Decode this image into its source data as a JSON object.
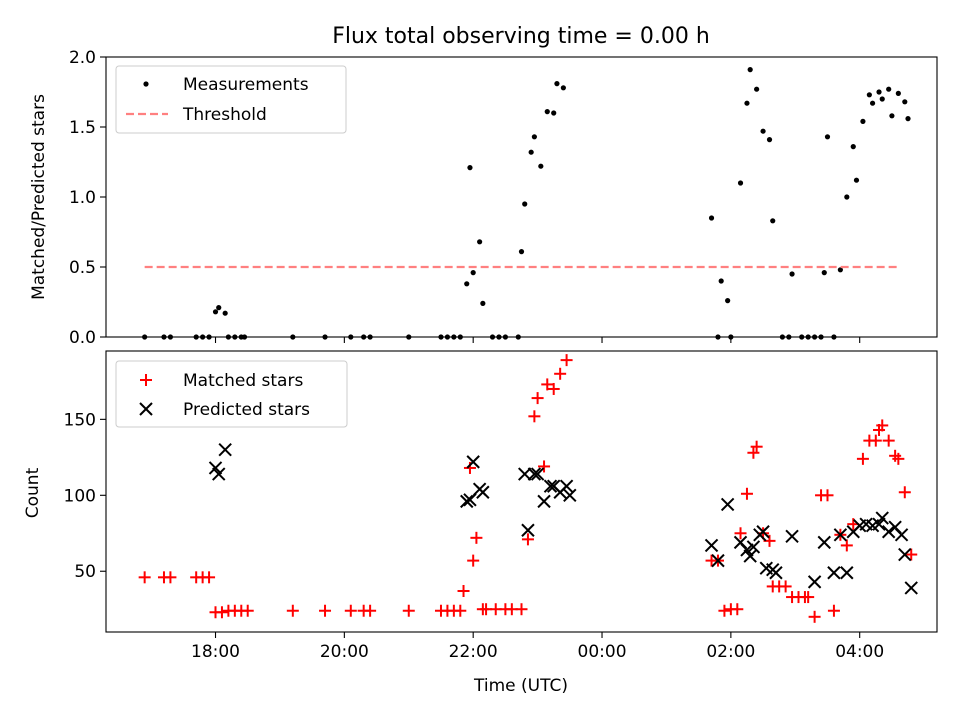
{
  "chart_data": [
    {
      "type": "scatter",
      "title": "Flux total observing time = 0.00 h",
      "xlabel": "",
      "ylabel": "Matched/Predicted stars",
      "xlim": [
        16.3,
        29.2
      ],
      "ylim": [
        0.0,
        2.0
      ],
      "x_tick_labels": [
        "18:00",
        "20:00",
        "22:00",
        "00:00",
        "02:00",
        "04:00"
      ],
      "y_ticks": [
        0.0,
        0.5,
        1.0,
        1.5,
        2.0
      ],
      "y_tick_labels": [
        "0.0",
        "0.5",
        "1.0",
        "1.5",
        "2.0"
      ],
      "legend_position": "top-left",
      "series": [
        {
          "name": "Measurements",
          "marker": "dot",
          "color": "#000000",
          "points": [
            [
              16.9,
              0
            ],
            [
              17.2,
              0
            ],
            [
              17.3,
              0
            ],
            [
              17.7,
              0
            ],
            [
              17.8,
              0
            ],
            [
              17.9,
              0
            ],
            [
              18.0,
              0.18
            ],
            [
              18.05,
              0.21
            ],
            [
              18.15,
              0.17
            ],
            [
              18.2,
              0
            ],
            [
              18.3,
              0
            ],
            [
              18.4,
              0
            ],
            [
              18.45,
              0
            ],
            [
              19.2,
              0
            ],
            [
              19.7,
              0
            ],
            [
              20.1,
              0
            ],
            [
              20.3,
              0
            ],
            [
              20.4,
              0
            ],
            [
              21.0,
              0
            ],
            [
              21.5,
              0
            ],
            [
              21.6,
              0
            ],
            [
              21.7,
              0
            ],
            [
              21.8,
              0
            ],
            [
              21.9,
              0.38
            ],
            [
              21.95,
              1.21
            ],
            [
              22.0,
              0.46
            ],
            [
              22.1,
              0.68
            ],
            [
              22.15,
              0.24
            ],
            [
              22.3,
              0
            ],
            [
              22.4,
              0
            ],
            [
              22.5,
              0
            ],
            [
              22.7,
              0
            ],
            [
              22.75,
              0.61
            ],
            [
              22.8,
              0.95
            ],
            [
              22.9,
              1.32
            ],
            [
              22.95,
              1.43
            ],
            [
              23.05,
              1.22
            ],
            [
              23.15,
              1.61
            ],
            [
              23.25,
              1.6
            ],
            [
              23.3,
              1.81
            ],
            [
              23.4,
              1.78
            ],
            [
              25.7,
              0.85
            ],
            [
              25.8,
              0
            ],
            [
              25.85,
              0.4
            ],
            [
              25.95,
              0.26
            ],
            [
              26.0,
              0
            ],
            [
              26.15,
              1.1
            ],
            [
              26.25,
              1.67
            ],
            [
              26.3,
              1.91
            ],
            [
              26.4,
              1.77
            ],
            [
              26.5,
              1.47
            ],
            [
              26.6,
              1.41
            ],
            [
              26.65,
              0.83
            ],
            [
              26.8,
              0
            ],
            [
              26.9,
              0
            ],
            [
              26.95,
              0.45
            ],
            [
              27.1,
              0
            ],
            [
              27.2,
              0
            ],
            [
              27.3,
              0
            ],
            [
              27.4,
              0
            ],
            [
              27.45,
              0.46
            ],
            [
              27.5,
              1.43
            ],
            [
              27.6,
              0
            ],
            [
              27.7,
              0.48
            ],
            [
              27.8,
              1.0
            ],
            [
              27.9,
              1.36
            ],
            [
              27.95,
              1.12
            ],
            [
              28.05,
              1.54
            ],
            [
              28.15,
              1.73
            ],
            [
              28.2,
              1.67
            ],
            [
              28.3,
              1.75
            ],
            [
              28.35,
              1.7
            ],
            [
              28.45,
              1.77
            ],
            [
              28.5,
              1.58
            ],
            [
              28.6,
              1.74
            ],
            [
              28.7,
              1.68
            ],
            [
              28.75,
              1.56
            ]
          ]
        },
        {
          "name": "Threshold",
          "marker": "dashed-line",
          "color": "#ff8080",
          "points": [
            [
              16.9,
              0.5
            ],
            [
              28.6,
              0.5
            ]
          ]
        }
      ]
    },
    {
      "type": "scatter",
      "title": "",
      "xlabel": "Time (UTC)",
      "ylabel": "Count",
      "xlim": [
        16.3,
        29.2
      ],
      "ylim": [
        10,
        195
      ],
      "x_tick_labels": [
        "18:00",
        "20:00",
        "22:00",
        "00:00",
        "02:00",
        "04:00"
      ],
      "y_ticks": [
        50,
        100,
        150
      ],
      "y_tick_labels": [
        "50",
        "100",
        "150"
      ],
      "legend_position": "top-left",
      "series": [
        {
          "name": "Matched stars",
          "marker": "plus",
          "color": "#ff0000",
          "points": [
            [
              16.9,
              46
            ],
            [
              17.2,
              46
            ],
            [
              17.3,
              46
            ],
            [
              17.7,
              46
            ],
            [
              17.8,
              46
            ],
            [
              17.9,
              46
            ],
            [
              18.0,
              23
            ],
            [
              18.1,
              23
            ],
            [
              18.2,
              24
            ],
            [
              18.3,
              24
            ],
            [
              18.4,
              24
            ],
            [
              18.5,
              24
            ],
            [
              19.2,
              24
            ],
            [
              19.7,
              24
            ],
            [
              20.1,
              24
            ],
            [
              20.3,
              24
            ],
            [
              20.4,
              24
            ],
            [
              21.0,
              24
            ],
            [
              21.5,
              24
            ],
            [
              21.6,
              24
            ],
            [
              21.7,
              24
            ],
            [
              21.8,
              24
            ],
            [
              21.85,
              37
            ],
            [
              21.95,
              118
            ],
            [
              22.0,
              57
            ],
            [
              22.05,
              72
            ],
            [
              22.15,
              25
            ],
            [
              22.2,
              25
            ],
            [
              22.35,
              25
            ],
            [
              22.5,
              25
            ],
            [
              22.6,
              25
            ],
            [
              22.75,
              25
            ],
            [
              22.85,
              71
            ],
            [
              22.95,
              152
            ],
            [
              23.0,
              164
            ],
            [
              23.1,
              119
            ],
            [
              23.15,
              173
            ],
            [
              23.25,
              170
            ],
            [
              23.35,
              180
            ],
            [
              23.45,
              189
            ],
            [
              25.7,
              57
            ],
            [
              25.8,
              57
            ],
            [
              25.9,
              24
            ],
            [
              26.0,
              25
            ],
            [
              26.1,
              25
            ],
            [
              26.15,
              75
            ],
            [
              26.25,
              101
            ],
            [
              26.35,
              128
            ],
            [
              26.4,
              132
            ],
            [
              26.5,
              75
            ],
            [
              26.6,
              70
            ],
            [
              26.65,
              40
            ],
            [
              26.75,
              40
            ],
            [
              26.85,
              40
            ],
            [
              26.95,
              33
            ],
            [
              27.05,
              33
            ],
            [
              27.15,
              33
            ],
            [
              27.2,
              33
            ],
            [
              27.3,
              20
            ],
            [
              27.4,
              100
            ],
            [
              27.5,
              100
            ],
            [
              27.6,
              24
            ],
            [
              27.7,
              74
            ],
            [
              27.8,
              67
            ],
            [
              27.9,
              81
            ],
            [
              28.05,
              124
            ],
            [
              28.15,
              136
            ],
            [
              28.25,
              136
            ],
            [
              28.3,
              143
            ],
            [
              28.35,
              146
            ],
            [
              28.45,
              136
            ],
            [
              28.55,
              126
            ],
            [
              28.6,
              124
            ],
            [
              28.7,
              102
            ],
            [
              28.8,
              61
            ]
          ]
        },
        {
          "name": "Predicted stars",
          "marker": "x",
          "color": "#000000",
          "points": [
            [
              18.0,
              118
            ],
            [
              18.05,
              114
            ],
            [
              18.15,
              130
            ],
            [
              21.9,
              96
            ],
            [
              21.95,
              97
            ],
            [
              22.0,
              122
            ],
            [
              22.1,
              104
            ],
            [
              22.15,
              102
            ],
            [
              22.8,
              114
            ],
            [
              22.85,
              77
            ],
            [
              22.95,
              114
            ],
            [
              23.0,
              114
            ],
            [
              23.1,
              96
            ],
            [
              23.2,
              106
            ],
            [
              23.25,
              106
            ],
            [
              23.35,
              102
            ],
            [
              23.45,
              106
            ],
            [
              23.5,
              100
            ],
            [
              25.7,
              67
            ],
            [
              25.8,
              57
            ],
            [
              25.95,
              94
            ],
            [
              26.15,
              69
            ],
            [
              26.25,
              64
            ],
            [
              26.3,
              60
            ],
            [
              26.35,
              66
            ],
            [
              26.45,
              74
            ],
            [
              26.5,
              76
            ],
            [
              26.55,
              52
            ],
            [
              26.65,
              51
            ],
            [
              26.7,
              49
            ],
            [
              26.95,
              73
            ],
            [
              27.3,
              43
            ],
            [
              27.45,
              69
            ],
            [
              27.6,
              49
            ],
            [
              27.7,
              74
            ],
            [
              27.8,
              49
            ],
            [
              27.9,
              76
            ],
            [
              28.0,
              80
            ],
            [
              28.1,
              81
            ],
            [
              28.2,
              80
            ],
            [
              28.3,
              81
            ],
            [
              28.35,
              85
            ],
            [
              28.45,
              76
            ],
            [
              28.55,
              79
            ],
            [
              28.65,
              74
            ],
            [
              28.7,
              61
            ],
            [
              28.8,
              39
            ]
          ]
        }
      ]
    }
  ]
}
